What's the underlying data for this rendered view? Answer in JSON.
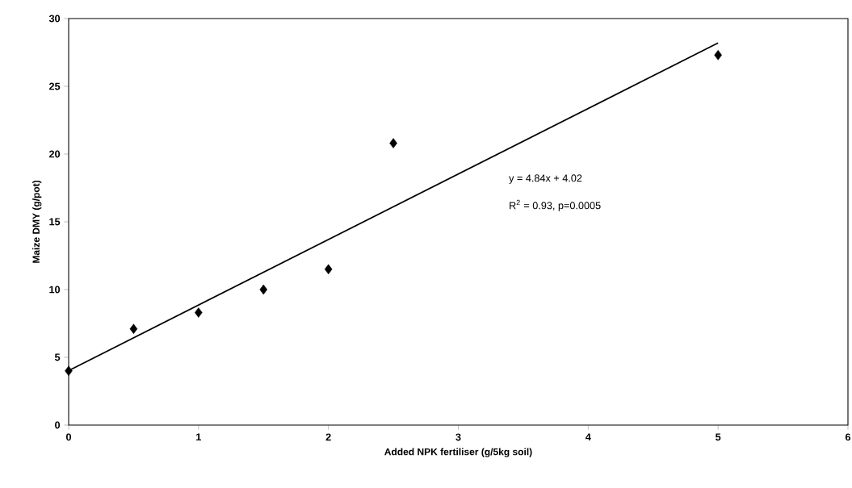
{
  "chart_data": {
    "type": "scatter",
    "xlabel": "Added NPK fertiliser (g/5kg soil)",
    "ylabel": "Maize DMY (g/pot)",
    "x": [
      0,
      0.5,
      1,
      1.5,
      2,
      2.5,
      5
    ],
    "series": [
      {
        "color": "#000000",
        "marker": "diamond",
        "values": [
          4.0,
          7.1,
          8.3,
          10.0,
          11.5,
          20.8,
          27.3
        ]
      },
      {
        "type": "line",
        "color": "#000000",
        "marker": "none",
        "line_style": "solid",
        "x": [
          0,
          5
        ],
        "values": [
          4.02,
          28.2
        ]
      }
    ],
    "annotations": [
      "y = 4.84x + 4.02",
      "R$^{2}$ = 0.93, p=0.0005"
    ],
    "xlim": [
      0,
      6
    ],
    "ylim": [
      0,
      30
    ],
    "xticks": [
      0,
      1,
      2,
      3,
      4,
      5,
      6
    ],
    "yticks": [
      0,
      5,
      10,
      15,
      20,
      25,
      30
    ]
  }
}
